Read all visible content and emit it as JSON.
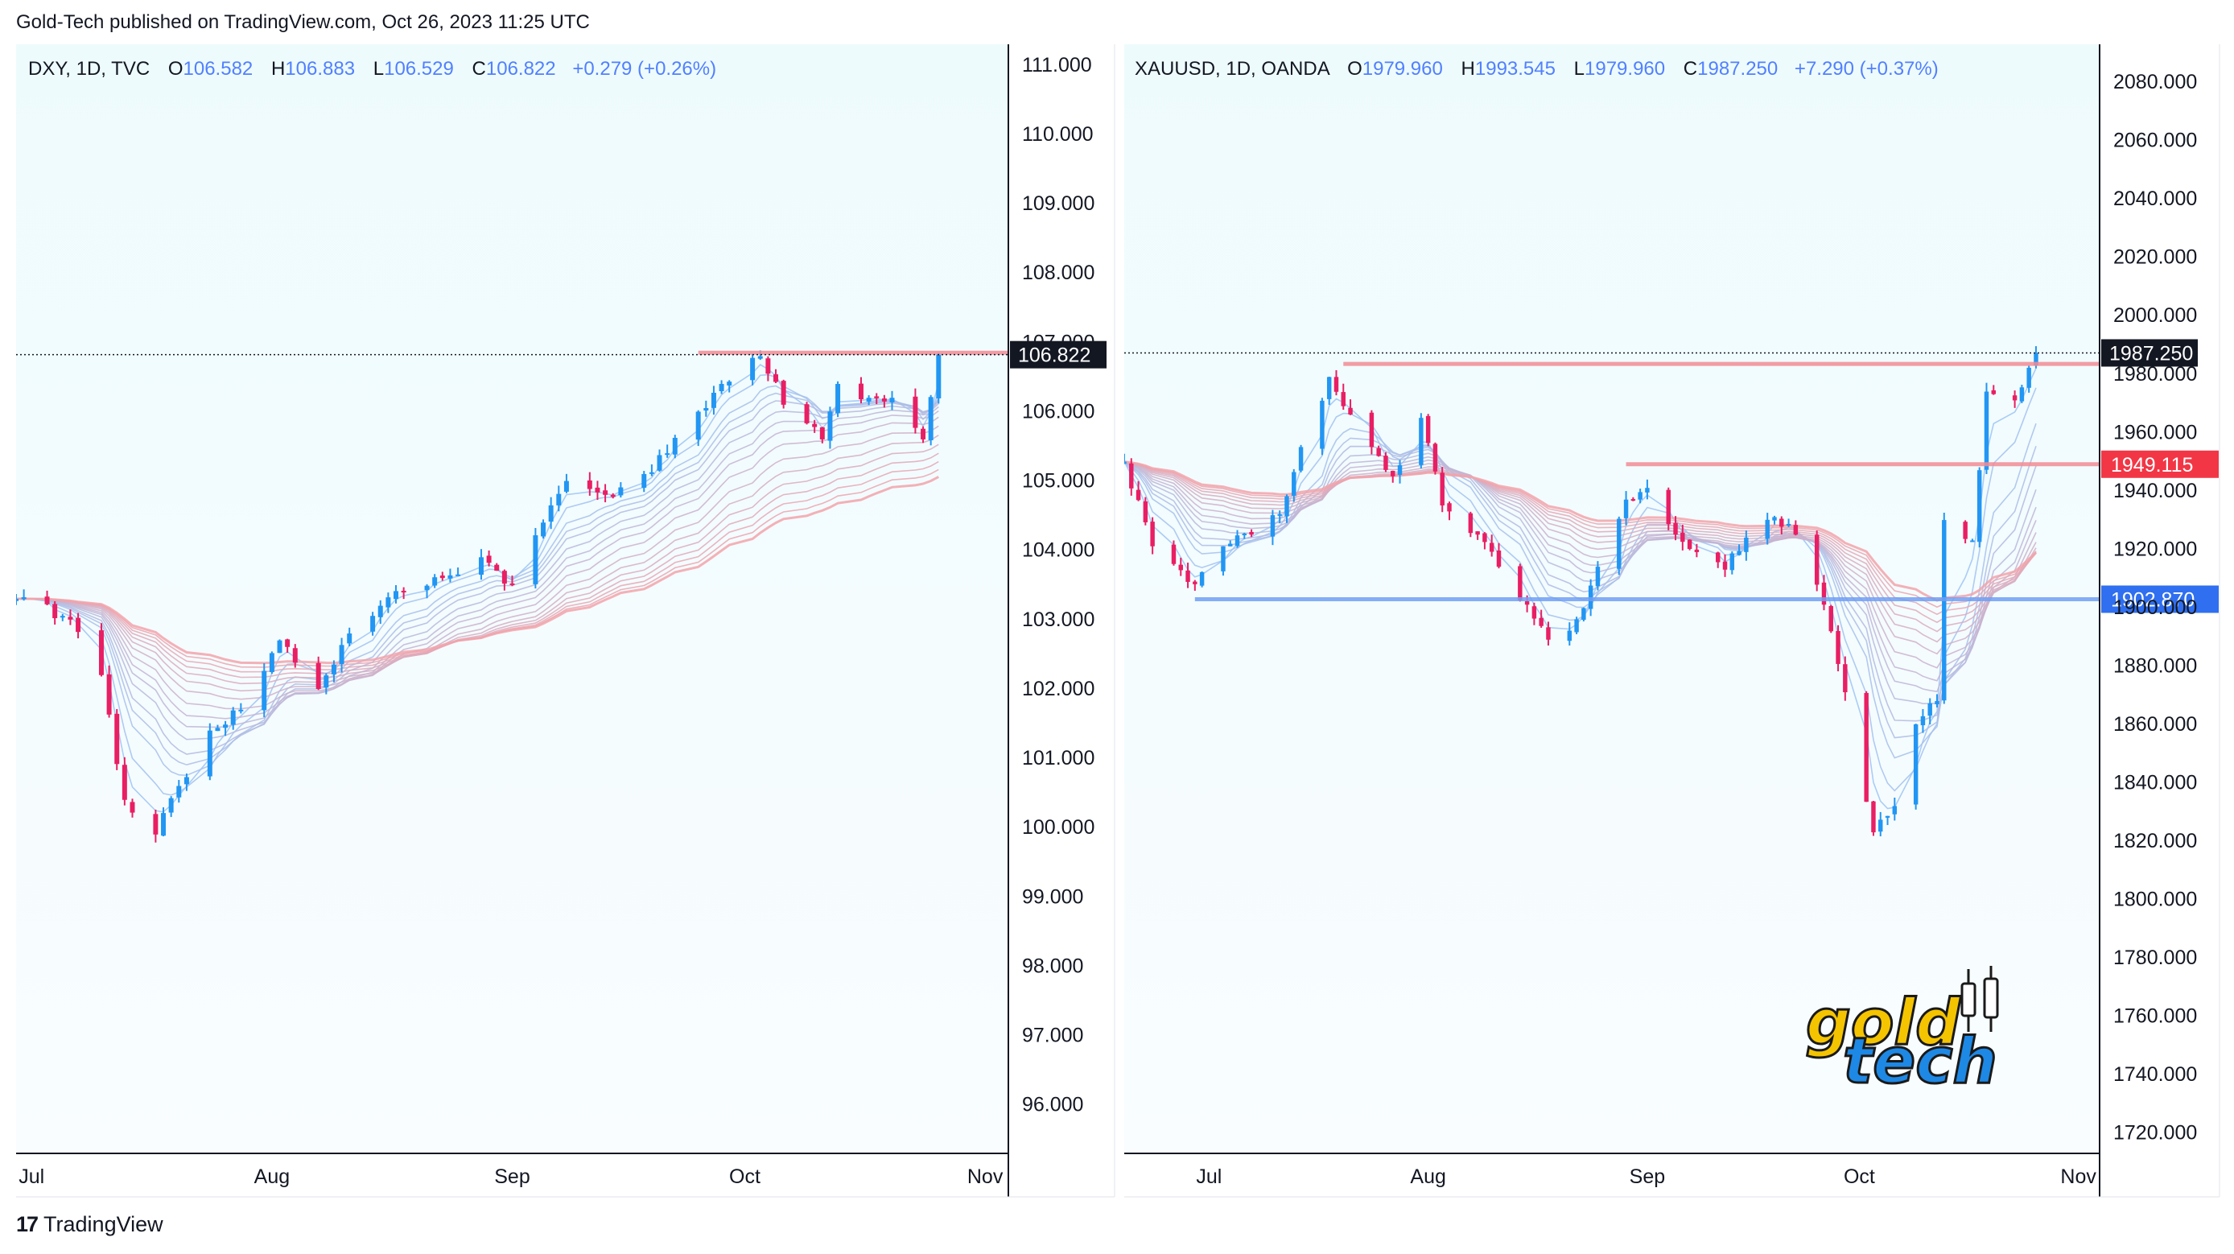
{
  "header": {
    "published": "Gold-Tech published on TradingView.com, Oct 26, 2023 11:25 UTC"
  },
  "footer": {
    "brand": "TradingView"
  },
  "colors": {
    "bull": "#2196f3",
    "bear": "#e91e63",
    "bg": "#f0fbfe",
    "resistance": "#f28b94",
    "support": "#6f9ff5",
    "logo_yellow": "#f5c400",
    "logo_blue": "#1e88e5"
  },
  "watermark": {
    "line1": "gold",
    "line2": "tech"
  },
  "chart_data": [
    {
      "type": "candlestick",
      "symbol": "DXY",
      "header": {
        "name": "DXY, 1D, TVC",
        "o_label": "O",
        "o": "106.582",
        "h_label": "H",
        "h": "106.883",
        "l_label": "L",
        "l": "106.529",
        "c_label": "C",
        "c": "106.822",
        "change": "+0.279 (+0.26%)"
      },
      "ylim": [
        95.3,
        111.3
      ],
      "yticks": [
        "111.000",
        "110.000",
        "109.000",
        "108.000",
        "107.000",
        "106.000",
        "105.000",
        "104.000",
        "103.000",
        "102.000",
        "101.000",
        "100.000",
        "99.000",
        "98.000",
        "97.000",
        "96.000"
      ],
      "xlim": [
        "2023-06-29",
        "2023-11-04"
      ],
      "xticks": [
        {
          "label": "Jul",
          "date": "2023-07-01"
        },
        {
          "label": "Aug",
          "date": "2023-08-01"
        },
        {
          "label": "Sep",
          "date": "2023-09-01"
        },
        {
          "label": "Oct",
          "date": "2023-10-01"
        },
        {
          "label": "Nov",
          "date": "2023-11-01"
        }
      ],
      "last_price": "106.822",
      "last_value": 106.822,
      "level_lines": [
        {
          "value": 106.85,
          "color": "resistance",
          "from": "2023-09-25",
          "label": ""
        }
      ],
      "closes": [
        {
          "date": "2023-06-29",
          "close": 103.3
        },
        {
          "date": "2023-07-06",
          "close": 103.0
        },
        {
          "date": "2023-07-10",
          "close": 102.2
        },
        {
          "date": "2023-07-13",
          "close": 100.4
        },
        {
          "date": "2023-07-17",
          "close": 99.9
        },
        {
          "date": "2023-07-20",
          "close": 100.6
        },
        {
          "date": "2023-07-24",
          "close": 101.4
        },
        {
          "date": "2023-07-28",
          "close": 101.7
        },
        {
          "date": "2023-08-02",
          "close": 102.7
        },
        {
          "date": "2023-08-07",
          "close": 102.0
        },
        {
          "date": "2023-08-11",
          "close": 102.8
        },
        {
          "date": "2023-08-15",
          "close": 103.2
        },
        {
          "date": "2023-08-18",
          "close": 103.4
        },
        {
          "date": "2023-08-23",
          "close": 103.6
        },
        {
          "date": "2023-08-28",
          "close": 103.9
        },
        {
          "date": "2023-09-01",
          "close": 103.5
        },
        {
          "date": "2023-09-05",
          "close": 104.4
        },
        {
          "date": "2023-09-08",
          "close": 105.0
        },
        {
          "date": "2023-09-13",
          "close": 104.8
        },
        {
          "date": "2023-09-18",
          "close": 105.1
        },
        {
          "date": "2023-09-21",
          "close": 105.4
        },
        {
          "date": "2023-09-25",
          "close": 106.0
        },
        {
          "date": "2023-09-28",
          "close": 106.4
        },
        {
          "date": "2023-10-03",
          "close": 106.8
        },
        {
          "date": "2023-10-06",
          "close": 106.1
        },
        {
          "date": "2023-10-11",
          "close": 105.6
        },
        {
          "date": "2023-10-13",
          "close": 106.4
        },
        {
          "date": "2023-10-17",
          "close": 106.2
        },
        {
          "date": "2023-10-20",
          "close": 106.2
        },
        {
          "date": "2023-10-24",
          "close": 105.6
        },
        {
          "date": "2023-10-26",
          "close": 106.822
        }
      ]
    },
    {
      "type": "candlestick",
      "symbol": "XAUUSD",
      "header": {
        "name": "XAUUSD, 1D, OANDA",
        "o_label": "O",
        "o": "1979.960",
        "h_label": "H",
        "h": "1993.545",
        "l_label": "L",
        "l": "1979.960",
        "c_label": "C",
        "c": "1987.250",
        "change": "+7.290 (+0.37%)"
      },
      "ylim": [
        1713,
        2093
      ],
      "yticks": [
        "2080.000",
        "2060.000",
        "2040.000",
        "2020.000",
        "2000.000",
        "1980.000",
        "1960.000",
        "1940.000",
        "1920.000",
        "1900.000",
        "1880.000",
        "1860.000",
        "1840.000",
        "1820.000",
        "1800.000",
        "1780.000",
        "1760.000",
        "1740.000",
        "1720.000"
      ],
      "xlim": [
        "2023-06-19",
        "2023-11-04"
      ],
      "xticks": [
        {
          "label": "Jul",
          "date": "2023-07-01"
        },
        {
          "label": "Aug",
          "date": "2023-08-01"
        },
        {
          "label": "Sep",
          "date": "2023-09-01"
        },
        {
          "label": "Oct",
          "date": "2023-10-01"
        },
        {
          "label": "Nov",
          "date": "2023-11-01"
        }
      ],
      "last_price": "1987.250",
      "last_value": 1987.25,
      "level_lines": [
        {
          "value": 1983.5,
          "color": "resistance",
          "from": "2023-07-20",
          "label": ""
        },
        {
          "value": 1949.115,
          "color": "resistance",
          "from": "2023-08-29",
          "label": "1949.115"
        },
        {
          "value": 1902.87,
          "color": "support",
          "from": "2023-06-29",
          "label": "1902.870"
        }
      ],
      "closes": [
        {
          "date": "2023-06-19",
          "close": 1950
        },
        {
          "date": "2023-06-23",
          "close": 1921
        },
        {
          "date": "2023-06-29",
          "close": 1908
        },
        {
          "date": "2023-07-03",
          "close": 1921
        },
        {
          "date": "2023-07-07",
          "close": 1925
        },
        {
          "date": "2023-07-11",
          "close": 1932
        },
        {
          "date": "2023-07-14",
          "close": 1955
        },
        {
          "date": "2023-07-18",
          "close": 1979
        },
        {
          "date": "2023-07-20",
          "close": 1969
        },
        {
          "date": "2023-07-24",
          "close": 1955
        },
        {
          "date": "2023-07-27",
          "close": 1945
        },
        {
          "date": "2023-07-31",
          "close": 1965
        },
        {
          "date": "2023-08-03",
          "close": 1935
        },
        {
          "date": "2023-08-08",
          "close": 1925
        },
        {
          "date": "2023-08-11",
          "close": 1914
        },
        {
          "date": "2023-08-15",
          "close": 1901
        },
        {
          "date": "2023-08-18",
          "close": 1889
        },
        {
          "date": "2023-08-22",
          "close": 1896
        },
        {
          "date": "2023-08-25",
          "close": 1914
        },
        {
          "date": "2023-08-29",
          "close": 1937
        },
        {
          "date": "2023-09-01",
          "close": 1941
        },
        {
          "date": "2023-09-05",
          "close": 1925
        },
        {
          "date": "2023-09-08",
          "close": 1919
        },
        {
          "date": "2023-09-12",
          "close": 1913
        },
        {
          "date": "2023-09-15",
          "close": 1924
        },
        {
          "date": "2023-09-19",
          "close": 1931
        },
        {
          "date": "2023-09-22",
          "close": 1925
        },
        {
          "date": "2023-09-26",
          "close": 1901
        },
        {
          "date": "2023-09-29",
          "close": 1871
        },
        {
          "date": "2023-10-03",
          "close": 1823
        },
        {
          "date": "2023-10-06",
          "close": 1832
        },
        {
          "date": "2023-10-09",
          "close": 1860
        },
        {
          "date": "2023-10-12",
          "close": 1868
        },
        {
          "date": "2023-10-13",
          "close": 1930
        },
        {
          "date": "2023-10-17",
          "close": 1923
        },
        {
          "date": "2023-10-19",
          "close": 1974
        },
        {
          "date": "2023-10-23",
          "close": 1971
        },
        {
          "date": "2023-10-26",
          "close": 1987.25
        }
      ]
    }
  ]
}
